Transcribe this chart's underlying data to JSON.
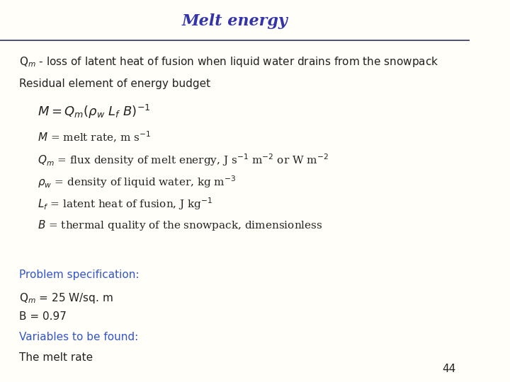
{
  "title": "Melt energy",
  "title_color": "#3333AA",
  "title_style": "italic",
  "title_fontsize": 16,
  "bg_color": "#FFFEF8",
  "line_color": "#333355",
  "text_color_black": "#222222",
  "text_color_blue": "#3355CC",
  "page_number": "44",
  "intro_line": "Q$_m$ - loss of latent heat of fusion when liquid water drains from the snowpack",
  "residual_line": "Residual element of energy budget",
  "formula": "$M = Q_m(\\rho_w\\ L_f\\ B)^{-1}$",
  "def1": "$M$ = melt rate, m s$^{-1}$",
  "def2": "$Q_m$ = flux density of melt energy, J s$^{-1}$ m$^{-2}$ or W m$^{-2}$",
  "def3": "$\\rho_w$ = density of liquid water, kg m$^{-3}$",
  "def4": "$L_f$ = latent heat of fusion, J kg$^{-1}$",
  "def5": "$B$ = thermal quality of the snowpack, dimensionless",
  "prob_spec": "Problem specification:",
  "qm_val": "Q$_m$ = 25 W/sq. m",
  "b_val": "B = 0.97",
  "vars_line": "Variables to be found:",
  "answer_line": "The melt rate"
}
